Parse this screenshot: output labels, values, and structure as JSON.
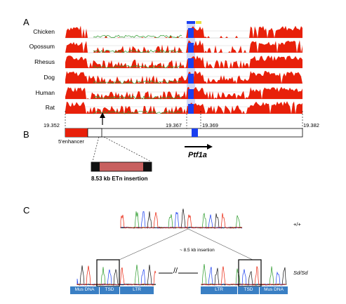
{
  "panels": {
    "a": "A",
    "b": "B",
    "c": "C"
  },
  "species": [
    "Chicken",
    "Opossum",
    "Rhesus",
    "Dog",
    "Human",
    "Rat"
  ],
  "panel_b": {
    "coords": [
      "19.352",
      "19.367",
      "19.369",
      "19.382"
    ],
    "enhancer_label": "5'enhancer",
    "gene_label": "Ptf1a",
    "insertion_label": "8.53 kb ETn insertion"
  },
  "panel_c": {
    "wt_label": "+/+",
    "mut_label": "Sd/Sd",
    "insertion_note": "~ 8.5 kb insertion",
    "break_mark": "//",
    "left_boxes": [
      "Mus DNA",
      "TSD",
      "LTR"
    ],
    "right_boxes": [
      "LTR",
      "TSD",
      "Mus DNA"
    ]
  },
  "colors": {
    "conservation": "#e8200a",
    "exon": "#1a3ff0",
    "box_blue": "#3a7fc4",
    "insertion_fill": "#c8605f"
  }
}
